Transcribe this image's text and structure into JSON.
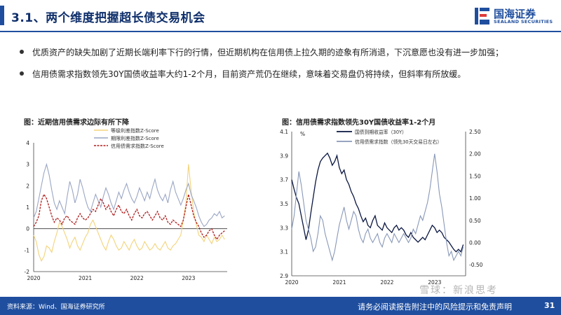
{
  "header": {
    "title": "3.1、两个维度把握超长债交易机会",
    "logo_cn": "国海证券",
    "logo_en": "SEALAND SECURITIES",
    "accent": "#1f4e9e"
  },
  "bullets": [
    "优质资产的缺失加剧了近期长端利率下行的行情，但近期机构在信用债上拉久期的迹象有所消退，下沉意愿也没有进一步加强；",
    "信用债需求指数领先30Y国债收益率大约1-2个月，目前资产荒仍在继续，意味着交易盘仍将持续，但斜率有所放缓。"
  ],
  "chart_data": [
    {
      "type": "line",
      "title": "图：近期信用债需求边际有所下降",
      "x_ticks": [
        "2020",
        "2021",
        "2022",
        "2023"
      ],
      "y_ticks": [
        "-2",
        "-1",
        "0",
        "1",
        "2",
        "3",
        "4"
      ],
      "ylim": [
        -2,
        4
      ],
      "xlim": [
        2020.0,
        2023.75
      ],
      "grid": false,
      "legend_position": "top-center",
      "series": [
        {
          "name": "等级利差指数Z-Score",
          "color": "#f3d37a",
          "x": [
            2020.0,
            2020.05,
            2020.1,
            2020.15,
            2020.2,
            2020.25,
            2020.3,
            2020.35,
            2020.4,
            2020.45,
            2020.5,
            2020.55,
            2020.6,
            2020.65,
            2020.7,
            2020.75,
            2020.8,
            2020.85,
            2020.9,
            2020.95,
            2021.0,
            2021.05,
            2021.1,
            2021.15,
            2021.2,
            2021.25,
            2021.3,
            2021.35,
            2021.4,
            2021.45,
            2021.5,
            2021.55,
            2021.6,
            2021.65,
            2021.7,
            2021.75,
            2021.8,
            2021.85,
            2021.9,
            2021.95,
            2022.0,
            2022.05,
            2022.1,
            2022.15,
            2022.2,
            2022.25,
            2022.3,
            2022.35,
            2022.4,
            2022.45,
            2022.5,
            2022.55,
            2022.6,
            2022.65,
            2022.7,
            2022.75,
            2022.8,
            2022.85,
            2022.9,
            2022.95,
            2023.0,
            2023.05,
            2023.1,
            2023.15,
            2023.2,
            2023.25,
            2023.3,
            2023.35,
            2023.4,
            2023.45,
            2023.5,
            2023.55,
            2023.6,
            2023.65,
            2023.7
          ],
          "values": [
            -0.3,
            -0.6,
            -1.2,
            -1.5,
            -1.3,
            -0.8,
            -0.9,
            -1.1,
            -0.6,
            -0.2,
            0.3,
            0.1,
            -0.2,
            -0.5,
            -0.9,
            -0.6,
            -0.4,
            -0.8,
            -1.0,
            -0.7,
            -0.4,
            -0.2,
            0.2,
            0.4,
            0.1,
            -0.2,
            -0.5,
            -0.8,
            -1.0,
            -0.6,
            -0.3,
            -0.5,
            -0.8,
            -1.0,
            -0.9,
            -0.6,
            -0.8,
            -1.0,
            -0.7,
            -0.5,
            -0.8,
            -1.0,
            -0.9,
            -0.6,
            -0.8,
            -1.0,
            -0.9,
            -0.7,
            -0.9,
            -1.0,
            -0.8,
            -0.6,
            -0.9,
            -1.0,
            -0.8,
            -0.7,
            -0.5,
            -0.3,
            0.4,
            1.2,
            3.0,
            1.8,
            0.8,
            0.2,
            -0.3,
            -0.4,
            -0.6,
            -0.3,
            -0.5,
            -0.7,
            -0.4,
            -0.6,
            -0.5,
            -0.3,
            -0.5
          ]
        },
        {
          "name": "期限利差指数Z-Score",
          "color": "#9aa6c4",
          "x": [
            2020.0,
            2020.05,
            2020.1,
            2020.15,
            2020.2,
            2020.25,
            2020.3,
            2020.35,
            2020.4,
            2020.45,
            2020.5,
            2020.55,
            2020.6,
            2020.65,
            2020.7,
            2020.75,
            2020.8,
            2020.85,
            2020.9,
            2020.95,
            2021.0,
            2021.05,
            2021.1,
            2021.15,
            2021.2,
            2021.25,
            2021.3,
            2021.35,
            2021.4,
            2021.45,
            2021.5,
            2021.55,
            2021.6,
            2021.65,
            2021.7,
            2021.75,
            2021.8,
            2021.85,
            2021.9,
            2021.95,
            2022.0,
            2022.05,
            2022.1,
            2022.15,
            2022.2,
            2022.25,
            2022.3,
            2022.35,
            2022.4,
            2022.45,
            2022.5,
            2022.55,
            2022.6,
            2022.65,
            2022.7,
            2022.75,
            2022.8,
            2022.85,
            2022.9,
            2022.95,
            2023.0,
            2023.05,
            2023.1,
            2023.15,
            2023.2,
            2023.25,
            2023.3,
            2023.35,
            2023.4,
            2023.45,
            2023.5,
            2023.55,
            2023.6,
            2023.65,
            2023.7
          ],
          "values": [
            0.5,
            0.8,
            1.4,
            2.0,
            2.6,
            3.0,
            2.5,
            1.8,
            1.2,
            0.9,
            1.3,
            1.0,
            0.7,
            1.5,
            2.2,
            1.8,
            1.2,
            1.6,
            2.3,
            1.9,
            1.4,
            1.0,
            0.8,
            1.2,
            1.6,
            1.3,
            1.0,
            1.5,
            1.9,
            1.6,
            1.2,
            0.9,
            1.3,
            1.7,
            1.4,
            1.8,
            2.1,
            1.7,
            1.4,
            1.2,
            1.5,
            1.9,
            1.6,
            1.3,
            1.7,
            1.4,
            1.9,
            2.3,
            1.8,
            1.5,
            1.3,
            1.6,
            1.2,
            1.8,
            2.2,
            1.7,
            1.4,
            1.1,
            1.4,
            1.8,
            2.1,
            1.6,
            1.3,
            1.0,
            0.6,
            0.3,
            0.1,
            0.2,
            0.4,
            0.5,
            0.7,
            0.6,
            0.8,
            0.5,
            0.6
          ]
        },
        {
          "name": "信用债需求指数Z-Score",
          "color": "#b01c1c",
          "dashed": true,
          "x": [
            2020.0,
            2020.05,
            2020.1,
            2020.15,
            2020.2,
            2020.25,
            2020.3,
            2020.35,
            2020.4,
            2020.45,
            2020.5,
            2020.55,
            2020.6,
            2020.65,
            2020.7,
            2020.75,
            2020.8,
            2020.85,
            2020.9,
            2020.95,
            2021.0,
            2021.05,
            2021.1,
            2021.15,
            2021.2,
            2021.25,
            2021.3,
            2021.35,
            2021.4,
            2021.45,
            2021.5,
            2021.55,
            2021.6,
            2021.65,
            2021.7,
            2021.75,
            2021.8,
            2021.85,
            2021.9,
            2021.95,
            2022.0,
            2022.05,
            2022.1,
            2022.15,
            2022.2,
            2022.25,
            2022.3,
            2022.35,
            2022.4,
            2022.45,
            2022.5,
            2022.55,
            2022.6,
            2022.65,
            2022.7,
            2022.75,
            2022.8,
            2022.85,
            2022.9,
            2022.95,
            2023.0,
            2023.05,
            2023.1,
            2023.15,
            2023.2,
            2023.25,
            2023.3,
            2023.35,
            2023.4,
            2023.45,
            2023.5,
            2023.55,
            2023.6,
            2023.65,
            2023.7
          ],
          "values": [
            0.1,
            0.3,
            0.6,
            1.3,
            1.6,
            1.4,
            1.0,
            0.6,
            0.3,
            0.5,
            0.4,
            0.2,
            0.5,
            0.6,
            0.4,
            0.3,
            0.2,
            0.5,
            0.7,
            0.5,
            0.4,
            0.5,
            0.7,
            0.9,
            0.8,
            1.1,
            1.4,
            1.2,
            0.9,
            1.1,
            0.8,
            0.6,
            0.9,
            1.1,
            0.8,
            0.7,
            0.9,
            0.6,
            0.4,
            0.7,
            0.9,
            0.6,
            0.5,
            0.7,
            0.8,
            0.6,
            0.4,
            0.6,
            0.8,
            0.5,
            0.4,
            0.6,
            0.3,
            0.2,
            0.4,
            0.3,
            0.2,
            0.1,
            0.4,
            1.0,
            1.6,
            1.1,
            0.6,
            0.3,
            0.1,
            -0.2,
            -0.4,
            -0.3,
            -0.1,
            0.0,
            -0.3,
            -0.5,
            -0.3,
            -0.2,
            -0.1
          ]
        }
      ]
    },
    {
      "type": "line",
      "title": "图：信用债需求指数领先30Y国债收益率1-2个月",
      "x_ticks": [
        "2020",
        "2021",
        "2022",
        "2023"
      ],
      "y_left_unit": "%",
      "y_left_ticks": [
        "2.9",
        "3.1",
        "3.3",
        "3.5",
        "3.7",
        "3.9",
        "4.1"
      ],
      "y_right_ticks": [
        "-0.50",
        "0.00",
        "0.50",
        "1.00",
        "1.50",
        "2.00",
        "2.50"
      ],
      "ylim_left": [
        2.9,
        4.1
      ],
      "ylim_right": [
        -0.75,
        2.5
      ],
      "xlim": [
        2020.0,
        2023.65
      ],
      "grid": false,
      "legend_position": "top-center",
      "series": [
        {
          "name": "国债到期收益率（30Y）",
          "color": "#0a1640",
          "axis": "left",
          "x": [
            2020.0,
            2020.05,
            2020.1,
            2020.15,
            2020.2,
            2020.25,
            2020.3,
            2020.35,
            2020.4,
            2020.45,
            2020.5,
            2020.55,
            2020.6,
            2020.65,
            2020.7,
            2020.75,
            2020.8,
            2020.85,
            2020.9,
            2020.95,
            2021.0,
            2021.05,
            2021.1,
            2021.15,
            2021.2,
            2021.25,
            2021.3,
            2021.35,
            2021.4,
            2021.45,
            2021.5,
            2021.55,
            2021.6,
            2021.65,
            2021.7,
            2021.75,
            2021.8,
            2021.85,
            2021.9,
            2021.95,
            2022.0,
            2022.05,
            2022.1,
            2022.15,
            2022.2,
            2022.25,
            2022.3,
            2022.35,
            2022.4,
            2022.45,
            2022.5,
            2022.55,
            2022.6,
            2022.65,
            2022.7,
            2022.75,
            2022.8,
            2022.85,
            2022.9,
            2022.95,
            2023.0,
            2023.05,
            2023.1,
            2023.15,
            2023.2,
            2023.25,
            2023.3,
            2023.35,
            2023.4,
            2023.45,
            2023.5,
            2023.55,
            2023.6
          ],
          "values": [
            3.7,
            3.62,
            3.55,
            3.5,
            3.4,
            3.3,
            3.2,
            3.28,
            3.42,
            3.55,
            3.68,
            3.78,
            3.85,
            3.88,
            3.9,
            3.92,
            3.88,
            3.82,
            3.85,
            3.9,
            3.8,
            3.75,
            3.78,
            3.7,
            3.66,
            3.6,
            3.56,
            3.5,
            3.46,
            3.4,
            3.35,
            3.38,
            3.32,
            3.3,
            3.36,
            3.4,
            3.32,
            3.3,
            3.28,
            3.34,
            3.3,
            3.28,
            3.26,
            3.3,
            3.32,
            3.28,
            3.3,
            3.28,
            3.24,
            3.22,
            3.26,
            3.22,
            3.2,
            3.18,
            3.2,
            3.22,
            3.2,
            3.24,
            3.28,
            3.32,
            3.3,
            3.26,
            3.28,
            3.26,
            3.22,
            3.2,
            3.18,
            3.15,
            3.12,
            3.1,
            3.12,
            3.1,
            3.16
          ]
        },
        {
          "name": "信用债需求指数（领先30天交易日左右）",
          "color": "#8898b8",
          "axis": "right",
          "x": [
            2020.0,
            2020.05,
            2020.1,
            2020.15,
            2020.2,
            2020.25,
            2020.3,
            2020.35,
            2020.4,
            2020.45,
            2020.5,
            2020.55,
            2020.6,
            2020.65,
            2020.7,
            2020.75,
            2020.8,
            2020.85,
            2020.9,
            2020.95,
            2021.0,
            2021.05,
            2021.1,
            2021.15,
            2021.2,
            2021.25,
            2021.3,
            2021.35,
            2021.4,
            2021.45,
            2021.5,
            2021.55,
            2021.6,
            2021.65,
            2021.7,
            2021.75,
            2021.8,
            2021.85,
            2021.9,
            2021.95,
            2022.0,
            2022.05,
            2022.1,
            2022.15,
            2022.2,
            2022.25,
            2022.3,
            2022.35,
            2022.4,
            2022.45,
            2022.5,
            2022.55,
            2022.6,
            2022.65,
            2022.7,
            2022.75,
            2022.8,
            2022.85,
            2022.9,
            2022.95,
            2023.0,
            2023.05,
            2023.1,
            2023.15,
            2023.2,
            2023.25,
            2023.3,
            2023.35,
            2023.4,
            2023.45,
            2023.5,
            2023.55,
            2023.6
          ],
          "values": [
            0.3,
            0.6,
            1.1,
            1.6,
            1.3,
            0.9,
            0.5,
            0.3,
            0.1,
            -0.2,
            -0.1,
            0.2,
            0.6,
            0.5,
            0.2,
            0.0,
            -0.2,
            -0.4,
            -0.2,
            0.1,
            0.4,
            0.6,
            0.8,
            0.5,
            0.3,
            0.5,
            0.7,
            0.6,
            0.3,
            0.1,
            0.0,
            0.2,
            0.3,
            0.1,
            0.0,
            0.1,
            0.2,
            0.0,
            -0.1,
            0.1,
            0.2,
            0.1,
            0.0,
            0.2,
            0.1,
            0.0,
            0.1,
            0.2,
            0.1,
            0.0,
            0.1,
            0.3,
            0.2,
            0.4,
            0.6,
            0.5,
            0.7,
            0.9,
            1.2,
            1.6,
            2.0,
            1.6,
            1.1,
            0.8,
            0.4,
            0.0,
            -0.3,
            -0.2,
            -0.4,
            -0.3,
            -0.2,
            -0.3,
            -0.1
          ]
        }
      ]
    }
  ],
  "footer": {
    "source": "资料来源：Wind、国海证券研究所",
    "disclaimer": "请务必阅读报告附注中的风险提示和免责声明",
    "page": "31"
  },
  "watermark": "雪球：新浪思考"
}
